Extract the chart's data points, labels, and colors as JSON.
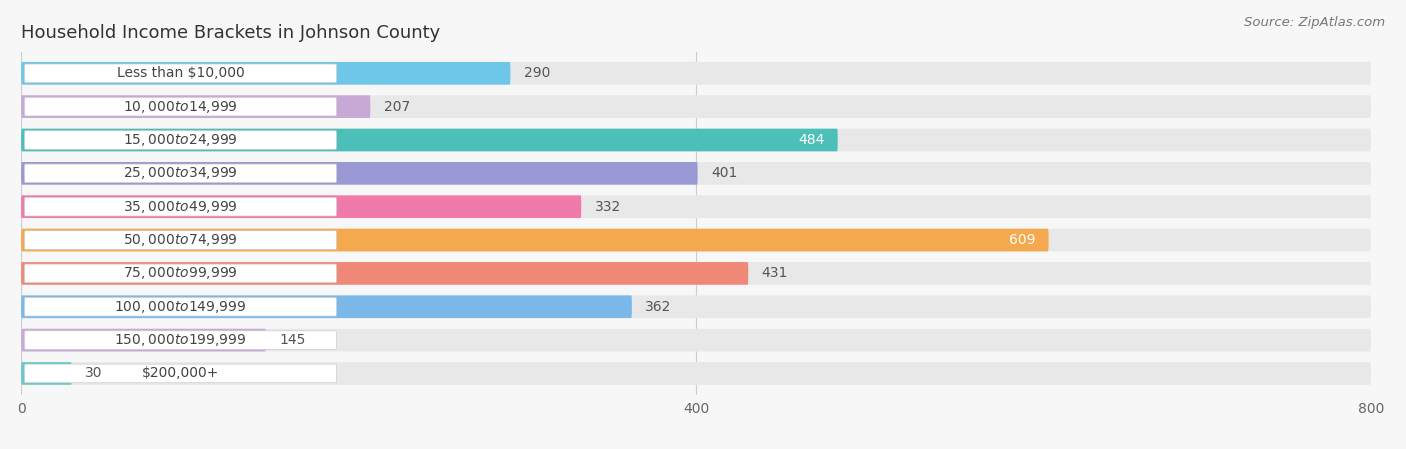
{
  "title": "Household Income Brackets in Johnson County",
  "source": "Source: ZipAtlas.com",
  "categories": [
    "Less than $10,000",
    "$10,000 to $14,999",
    "$15,000 to $24,999",
    "$25,000 to $34,999",
    "$35,000 to $49,999",
    "$50,000 to $74,999",
    "$75,000 to $99,999",
    "$100,000 to $149,999",
    "$150,000 to $199,999",
    "$200,000+"
  ],
  "values": [
    290,
    207,
    484,
    401,
    332,
    609,
    431,
    362,
    145,
    30
  ],
  "bar_colors": [
    "#6ec6e8",
    "#c8a8d4",
    "#4bbfb8",
    "#9a98d4",
    "#f07aaa",
    "#f5a94e",
    "#f08878",
    "#7ab8ea",
    "#c8a8d4",
    "#6ec6c8"
  ],
  "value_label_inside": [
    false,
    false,
    true,
    false,
    false,
    true,
    false,
    false,
    false,
    false
  ],
  "xlim": [
    0,
    800
  ],
  "xticks": [
    0,
    400,
    800
  ],
  "background_color": "#f7f7f7",
  "bar_bg_color": "#e8e8e8",
  "title_fontsize": 13,
  "source_fontsize": 9.5,
  "label_fontsize": 10,
  "value_fontsize": 10,
  "bar_height": 0.68,
  "bar_gap": 1.0
}
